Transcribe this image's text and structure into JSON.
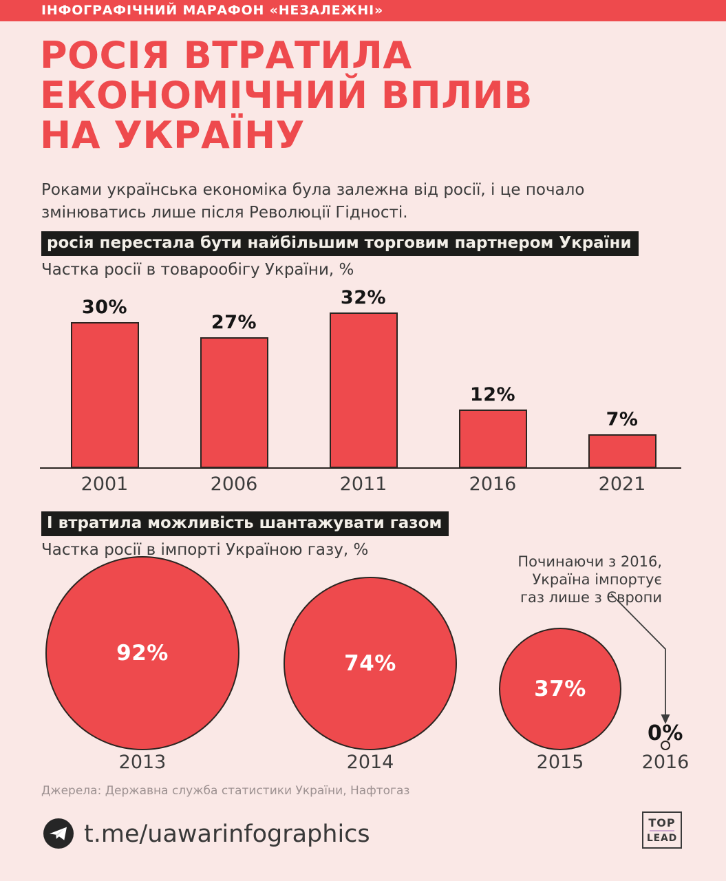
{
  "banner": {
    "label": "ІНФОГРАФІЧНИЙ МАРАФОН «НЕЗАЛЕЖНІ»"
  },
  "header": {
    "title": "РОСІЯ ВТРАТИЛА\nЕКОНОМІЧНИЙ ВПЛИВ\nНА УКРАЇНУ",
    "intro": "Роками українська економіка була залежна від росії, і це почало\nзмінюватись лише після Революції Гідності."
  },
  "colors": {
    "accent_red": "#EE4A4D",
    "background": "#FAE8E6",
    "chip_background": "#1C1C1A",
    "chip_text": "#F3EFE8",
    "outline_ink": "#2B2521",
    "body_text": "#3C3C3C",
    "muted_text": "#9D9191",
    "logo_rule_lavender": "#CDA6CE"
  },
  "chart_data": [
    {
      "type": "bar",
      "title": "росія перестала бути найбільшим торговим партнером України",
      "subtitle": "Частка росії в товарообігу України, %",
      "categories": [
        "2001",
        "2006",
        "2011",
        "2016",
        "2021"
      ],
      "values": [
        30,
        27,
        32,
        12,
        7
      ],
      "value_labels": [
        "30%",
        "27%",
        "32%",
        "12%",
        "7%"
      ],
      "ylim": [
        0,
        32
      ],
      "grid": false,
      "bar_color": "#EE4A4D"
    },
    {
      "type": "pie",
      "variant": "proportional-area-circles",
      "title": "І втратила можливість шантажувати газом",
      "subtitle": "Частка росії в імпорті Україною газу, %",
      "categories": [
        "2013",
        "2014",
        "2015",
        "2016"
      ],
      "values": [
        92,
        74,
        37,
        0
      ],
      "value_labels": [
        "92%",
        "74%",
        "37%",
        "0%"
      ],
      "circle_color": "#EE4A4D",
      "annotation": {
        "text": "Починаючи з 2016,\nУкраїна імпортує\nгаз лише з Європи",
        "points_to": "2016"
      }
    }
  ],
  "source": {
    "label": "Джерела: Державна служба статистики України, Нафтогаз"
  },
  "footer": {
    "telegram_handle": "t.me/uawarinfographics",
    "logo_top": "TOP",
    "logo_lead": "LEAD"
  }
}
